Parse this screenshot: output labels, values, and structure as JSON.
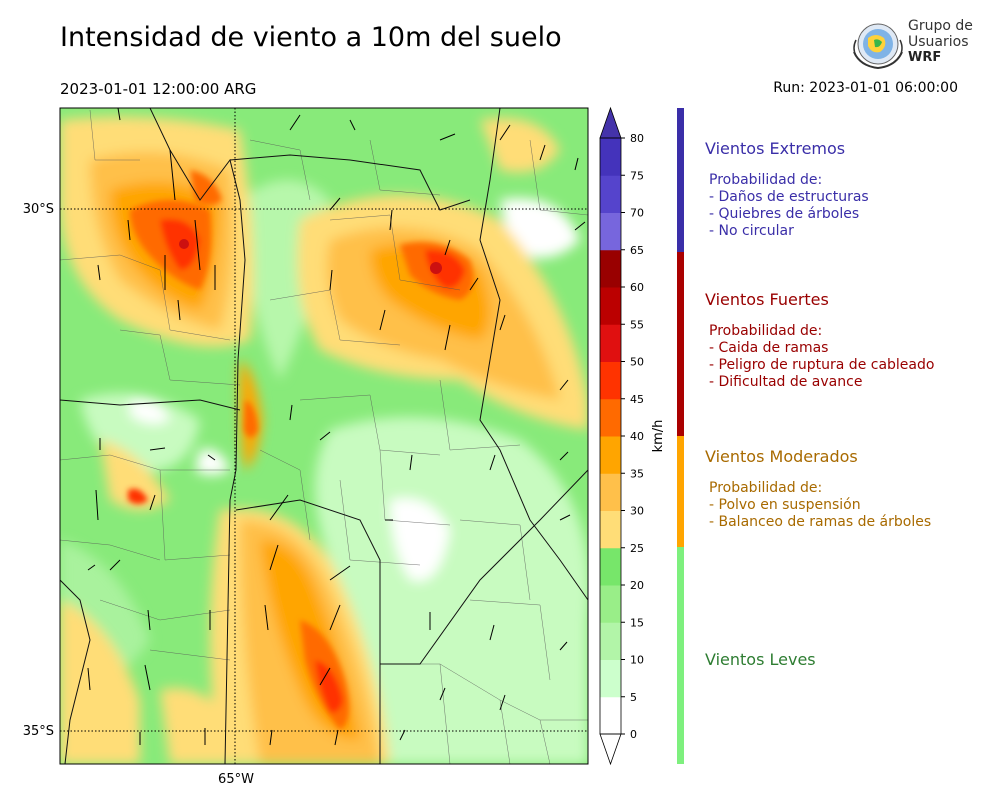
{
  "header": {
    "title": "Intensidad de viento a 10m del suelo",
    "valid_time": "2023-01-01 12:00:00 ARG",
    "run": "Run: 2023-01-01 06:00:00"
  },
  "logo": {
    "line1": "Grupo de",
    "line2": "Usuarios",
    "line3": "WRF"
  },
  "map": {
    "lat_labels": [
      "30°S",
      "35°S"
    ],
    "lon_labels": [
      "65°W"
    ]
  },
  "colorbar": {
    "unit": "km/h",
    "levels": [
      0,
      5,
      10,
      15,
      20,
      25,
      30,
      35,
      40,
      45,
      50,
      55,
      60,
      65,
      70,
      75,
      80
    ],
    "level_labels": [
      "0",
      "5",
      "10",
      "15",
      "20",
      "25",
      "30",
      "35",
      "40",
      "45",
      "50",
      "55",
      "60",
      "65",
      "70",
      "75",
      "80"
    ],
    "colors": [
      "#ffffff",
      "#ccffcc",
      "#b2f5a8",
      "#99ee88",
      "#77e66a",
      "#ffdd77",
      "#ffc04a",
      "#ffa500",
      "#ff6a00",
      "#ff3300",
      "#e01010",
      "#bb0000",
      "#990000",
      "#7766dd",
      "#5544cc",
      "#4433bb"
    ],
    "under_color": "#ffffff",
    "over_color": "#4433aa"
  },
  "categories": [
    {
      "title": "Vientos Extremos",
      "color": "#3a2ea8",
      "bar_color": "#3a2ea8",
      "items": [
        "Probabilidad de:",
        "- Daños de estructuras",
        "- Quiebres de árboles",
        "- No circular"
      ]
    },
    {
      "title": "Vientos Fuertes",
      "color": "#990000",
      "bar_color": "#aa0000",
      "items": [
        "Probabilidad de:",
        "- Caida de ramas",
        "- Peligro de ruptura de cableado",
        "- Dificultad de avance"
      ]
    },
    {
      "title": "Vientos Moderados",
      "color": "#a86a00",
      "bar_color": "#ffa500",
      "items": [
        "Probabilidad de:",
        "- Polvo en suspensión",
        "- Balanceo de ramas de árboles"
      ]
    },
    {
      "title": "Vientos Leves",
      "color": "#2e7d32",
      "bar_color": "#7ef07e",
      "items": []
    }
  ]
}
